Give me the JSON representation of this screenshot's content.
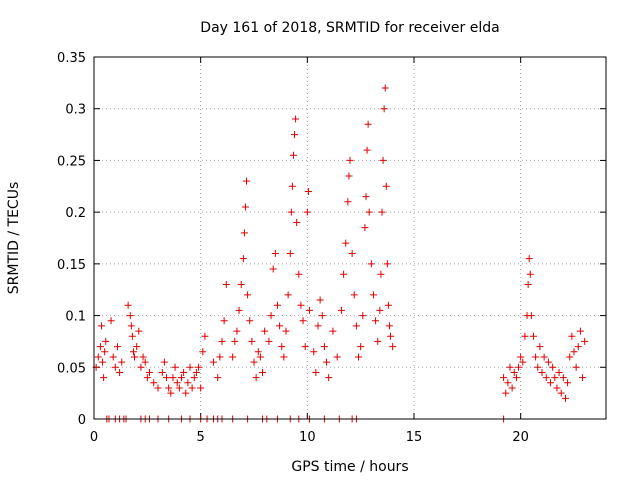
{
  "chart_data": {
    "type": "scatter",
    "title": "Day 161 of 2018, SRMTID for receiver elda",
    "xlabel": "GPS time / hours",
    "ylabel": "SRMTID / TECUs",
    "xlim": [
      0,
      24
    ],
    "ylim": [
      0,
      0.35
    ],
    "xticks": [
      0,
      5,
      10,
      15,
      20
    ],
    "yticks": [
      0,
      0.05,
      0.1,
      0.15,
      0.2,
      0.25,
      0.3,
      0.35
    ],
    "xtick_labels": [
      "0",
      "5",
      "10",
      "15",
      "20"
    ],
    "ytick_labels": [
      "0",
      "0.05",
      "0.1",
      "0.15",
      "0.2",
      "0.25",
      "0.3",
      "0.35"
    ],
    "grid": true,
    "marker": "plus",
    "color": "#e00000",
    "series": [
      {
        "name": "SRMTID",
        "points": [
          [
            0.1,
            0.05
          ],
          [
            0.2,
            0.06
          ],
          [
            0.3,
            0.07
          ],
          [
            0.35,
            0.09
          ],
          [
            0.4,
            0.055
          ],
          [
            0.45,
            0.04
          ],
          [
            0.5,
            0.065
          ],
          [
            0.55,
            0.075
          ],
          [
            0.8,
            0.095
          ],
          [
            0.9,
            0.06
          ],
          [
            1.0,
            0.05
          ],
          [
            1.1,
            0.07
          ],
          [
            1.2,
            0.045
          ],
          [
            1.3,
            0.055
          ],
          [
            1.6,
            0.11
          ],
          [
            1.7,
            0.1
          ],
          [
            1.75,
            0.09
          ],
          [
            1.8,
            0.08
          ],
          [
            1.85,
            0.065
          ],
          [
            1.9,
            0.06
          ],
          [
            2.0,
            0.07
          ],
          [
            2.1,
            0.085
          ],
          [
            2.2,
            0.05
          ],
          [
            2.3,
            0.06
          ],
          [
            2.4,
            0.055
          ],
          [
            2.5,
            0.04
          ],
          [
            2.6,
            0.045
          ],
          [
            2.8,
            0.035
          ],
          [
            3.0,
            0.03
          ],
          [
            3.2,
            0.045
          ],
          [
            3.3,
            0.055
          ],
          [
            3.4,
            0.04
          ],
          [
            3.5,
            0.03
          ],
          [
            3.6,
            0.025
          ],
          [
            3.7,
            0.04
          ],
          [
            3.8,
            0.05
          ],
          [
            3.9,
            0.035
          ],
          [
            4.0,
            0.03
          ],
          [
            4.1,
            0.04
          ],
          [
            4.2,
            0.045
          ],
          [
            4.3,
            0.025
          ],
          [
            4.4,
            0.035
          ],
          [
            4.5,
            0.05
          ],
          [
            4.6,
            0.03
          ],
          [
            4.7,
            0.04
          ],
          [
            4.8,
            0.045
          ],
          [
            4.9,
            0.05
          ],
          [
            5.0,
            0.03
          ],
          [
            5.1,
            0.065
          ],
          [
            5.2,
            0.08
          ],
          [
            5.6,
            0.055
          ],
          [
            5.8,
            0.04
          ],
          [
            5.9,
            0.06
          ],
          [
            6.0,
            0.075
          ],
          [
            6.1,
            0.095
          ],
          [
            6.2,
            0.13
          ],
          [
            6.5,
            0.06
          ],
          [
            6.6,
            0.075
          ],
          [
            6.7,
            0.085
          ],
          [
            6.8,
            0.105
          ],
          [
            6.9,
            0.13
          ],
          [
            7.0,
            0.155
          ],
          [
            7.05,
            0.18
          ],
          [
            7.1,
            0.205
          ],
          [
            7.15,
            0.23
          ],
          [
            7.2,
            0.12
          ],
          [
            7.3,
            0.095
          ],
          [
            7.4,
            0.075
          ],
          [
            7.5,
            0.055
          ],
          [
            7.6,
            0.04
          ],
          [
            7.7,
            0.065
          ],
          [
            7.8,
            0.06
          ],
          [
            7.9,
            0.045
          ],
          [
            8.0,
            0.085
          ],
          [
            8.2,
            0.075
          ],
          [
            8.3,
            0.1
          ],
          [
            8.4,
            0.145
          ],
          [
            8.5,
            0.16
          ],
          [
            8.6,
            0.11
          ],
          [
            8.7,
            0.09
          ],
          [
            8.8,
            0.07
          ],
          [
            8.9,
            0.06
          ],
          [
            9.0,
            0.085
          ],
          [
            9.1,
            0.12
          ],
          [
            9.2,
            0.16
          ],
          [
            9.25,
            0.2
          ],
          [
            9.3,
            0.225
          ],
          [
            9.35,
            0.255
          ],
          [
            9.4,
            0.275
          ],
          [
            9.45,
            0.29
          ],
          [
            9.5,
            0.19
          ],
          [
            9.6,
            0.14
          ],
          [
            9.7,
            0.11
          ],
          [
            9.8,
            0.095
          ],
          [
            9.9,
            0.07
          ],
          [
            10.0,
            0.2
          ],
          [
            10.05,
            0.22
          ],
          [
            10.1,
            0.105
          ],
          [
            10.3,
            0.065
          ],
          [
            10.4,
            0.045
          ],
          [
            10.5,
            0.09
          ],
          [
            10.6,
            0.115
          ],
          [
            10.7,
            0.1
          ],
          [
            10.8,
            0.07
          ],
          [
            10.9,
            0.055
          ],
          [
            11.0,
            0.04
          ],
          [
            11.2,
            0.085
          ],
          [
            11.4,
            0.06
          ],
          [
            11.6,
            0.105
          ],
          [
            11.7,
            0.14
          ],
          [
            11.8,
            0.17
          ],
          [
            11.9,
            0.21
          ],
          [
            11.95,
            0.235
          ],
          [
            12.0,
            0.25
          ],
          [
            12.1,
            0.16
          ],
          [
            12.2,
            0.12
          ],
          [
            12.3,
            0.09
          ],
          [
            12.4,
            0.06
          ],
          [
            12.5,
            0.07
          ],
          [
            12.6,
            0.1
          ],
          [
            12.7,
            0.185
          ],
          [
            12.75,
            0.215
          ],
          [
            12.8,
            0.26
          ],
          [
            12.85,
            0.285
          ],
          [
            12.9,
            0.2
          ],
          [
            13.0,
            0.15
          ],
          [
            13.1,
            0.12
          ],
          [
            13.2,
            0.095
          ],
          [
            13.3,
            0.075
          ],
          [
            13.4,
            0.105
          ],
          [
            13.45,
            0.14
          ],
          [
            13.5,
            0.2
          ],
          [
            13.55,
            0.25
          ],
          [
            13.6,
            0.3
          ],
          [
            13.65,
            0.32
          ],
          [
            13.7,
            0.225
          ],
          [
            13.75,
            0.15
          ],
          [
            13.8,
            0.11
          ],
          [
            13.85,
            0.09
          ],
          [
            13.9,
            0.08
          ],
          [
            14.0,
            0.07
          ],
          [
            19.2,
            0.04
          ],
          [
            19.3,
            0.025
          ],
          [
            19.4,
            0.035
          ],
          [
            19.5,
            0.05
          ],
          [
            19.6,
            0.03
          ],
          [
            19.7,
            0.045
          ],
          [
            19.8,
            0.04
          ],
          [
            19.9,
            0.05
          ],
          [
            20.0,
            0.06
          ],
          [
            20.1,
            0.055
          ],
          [
            20.2,
            0.08
          ],
          [
            20.3,
            0.1
          ],
          [
            20.35,
            0.13
          ],
          [
            20.4,
            0.155
          ],
          [
            20.45,
            0.14
          ],
          [
            20.5,
            0.1
          ],
          [
            20.6,
            0.08
          ],
          [
            20.7,
            0.06
          ],
          [
            20.8,
            0.05
          ],
          [
            20.9,
            0.07
          ],
          [
            21.0,
            0.045
          ],
          [
            21.1,
            0.06
          ],
          [
            21.2,
            0.04
          ],
          [
            21.3,
            0.055
          ],
          [
            21.4,
            0.035
          ],
          [
            21.5,
            0.05
          ],
          [
            21.6,
            0.04
          ],
          [
            21.7,
            0.03
          ],
          [
            21.8,
            0.045
          ],
          [
            21.9,
            0.025
          ],
          [
            22.0,
            0.04
          ],
          [
            22.1,
            0.02
          ],
          [
            22.2,
            0.035
          ],
          [
            22.3,
            0.06
          ],
          [
            22.4,
            0.08
          ],
          [
            22.5,
            0.065
          ],
          [
            22.6,
            0.05
          ],
          [
            22.7,
            0.07
          ],
          [
            22.8,
            0.085
          ],
          [
            22.9,
            0.04
          ],
          [
            23.0,
            0.075
          ],
          [
            0.6,
            0
          ],
          [
            0.7,
            0
          ],
          [
            1.0,
            0
          ],
          [
            1.2,
            0
          ],
          [
            1.4,
            0
          ],
          [
            1.5,
            0
          ],
          [
            2.2,
            0
          ],
          [
            2.4,
            0
          ],
          [
            2.6,
            0
          ],
          [
            3.0,
            0
          ],
          [
            3.5,
            0
          ],
          [
            4.1,
            0
          ],
          [
            4.5,
            0
          ],
          [
            5.0,
            0
          ],
          [
            5.3,
            0
          ],
          [
            5.6,
            0
          ],
          [
            5.8,
            0
          ],
          [
            6.0,
            0
          ],
          [
            6.5,
            0
          ],
          [
            7.2,
            0
          ],
          [
            7.9,
            0
          ],
          [
            8.1,
            0
          ],
          [
            8.6,
            0
          ],
          [
            9.2,
            0
          ],
          [
            9.6,
            0
          ],
          [
            10.1,
            0
          ],
          [
            10.8,
            0
          ],
          [
            11.5,
            0
          ],
          [
            12.1,
            0
          ],
          [
            12.3,
            0
          ],
          [
            19.2,
            0
          ]
        ]
      }
    ]
  }
}
